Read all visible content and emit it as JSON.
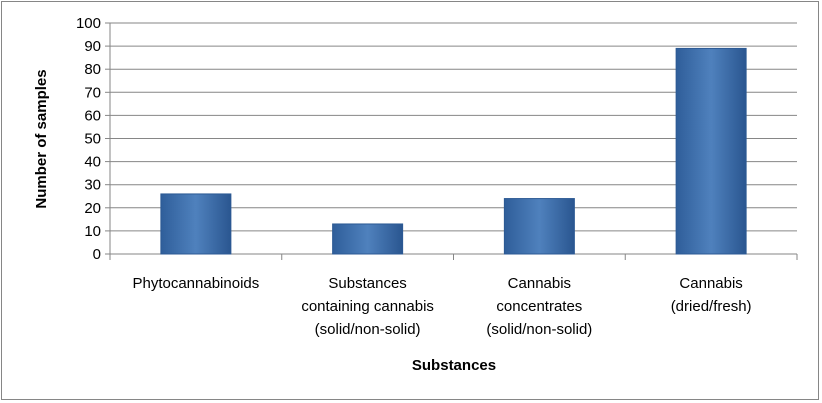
{
  "chart_data": {
    "type": "bar",
    "title": "",
    "xlabel": "Substances",
    "ylabel": "Number of samples",
    "ylim": [
      0,
      100
    ],
    "ytick_step": 10,
    "grid": true,
    "categories": [
      [
        "Phytocannabinoids"
      ],
      [
        "Substances",
        "containing cannabis",
        "(solid/non-solid)"
      ],
      [
        "Cannabis",
        "concentrates",
        "(solid/non-solid)"
      ],
      [
        "Cannabis",
        "(dried/fresh)"
      ]
    ],
    "values": [
      26,
      13,
      24,
      89
    ],
    "colors": {
      "bar": "#4F81BD",
      "bar_dark": "#2C5A94",
      "grid": "#868686"
    }
  }
}
